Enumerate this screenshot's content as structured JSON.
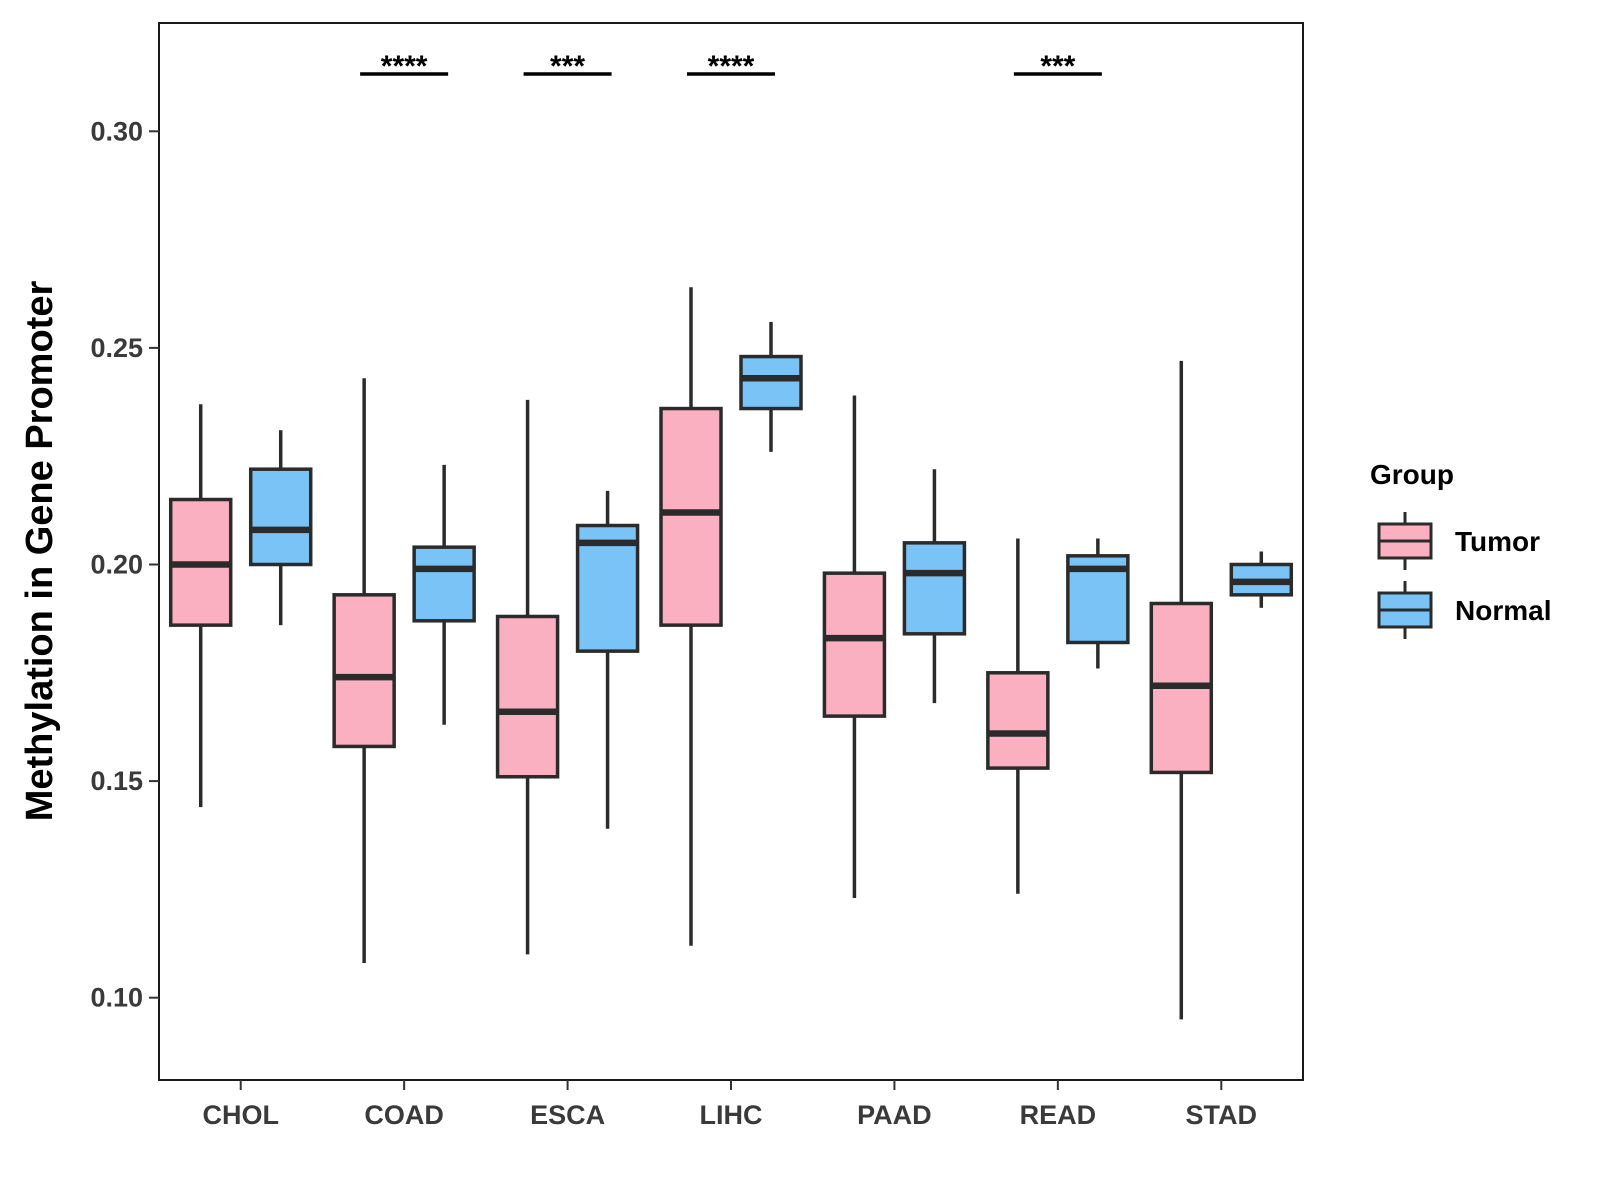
{
  "chart_data": {
    "type": "boxplot",
    "title": "",
    "xlabel": "",
    "ylabel": "Methylation in Gene Promoter",
    "ylim": [
      0.081,
      0.325
    ],
    "yticks": [
      0.1,
      0.15,
      0.2,
      0.25,
      0.3
    ],
    "ytick_labels": [
      "0.10",
      "0.15",
      "0.20",
      "0.25",
      "0.30"
    ],
    "categories": [
      "CHOL",
      "COAD",
      "ESCA",
      "LIHC",
      "PAAD",
      "READ",
      "STAD"
    ],
    "grid": false,
    "legend": {
      "title": "Group",
      "position": "right",
      "entries": [
        {
          "name": "Tumor",
          "color": "#FBB0C2"
        },
        {
          "name": "Normal",
          "color": "#7AC3F7"
        }
      ]
    },
    "series": [
      {
        "name": "Tumor",
        "color": "#FBB0C2",
        "boxes": [
          {
            "category": "CHOL",
            "whisker_low": 0.144,
            "q1": 0.186,
            "median": 0.2,
            "q3": 0.215,
            "whisker_high": 0.237
          },
          {
            "category": "COAD",
            "whisker_low": 0.108,
            "q1": 0.158,
            "median": 0.174,
            "q3": 0.193,
            "whisker_high": 0.243
          },
          {
            "category": "ESCA",
            "whisker_low": 0.11,
            "q1": 0.151,
            "median": 0.166,
            "q3": 0.188,
            "whisker_high": 0.238
          },
          {
            "category": "LIHC",
            "whisker_low": 0.112,
            "q1": 0.186,
            "median": 0.212,
            "q3": 0.236,
            "whisker_high": 0.264
          },
          {
            "category": "PAAD",
            "whisker_low": 0.123,
            "q1": 0.165,
            "median": 0.183,
            "q3": 0.198,
            "whisker_high": 0.239
          },
          {
            "category": "READ",
            "whisker_low": 0.124,
            "q1": 0.153,
            "median": 0.161,
            "q3": 0.175,
            "whisker_high": 0.206
          },
          {
            "category": "STAD",
            "whisker_low": 0.095,
            "q1": 0.152,
            "median": 0.172,
            "q3": 0.191,
            "whisker_high": 0.247
          }
        ]
      },
      {
        "name": "Normal",
        "color": "#7AC3F7",
        "boxes": [
          {
            "category": "CHOL",
            "whisker_low": 0.186,
            "q1": 0.2,
            "median": 0.208,
            "q3": 0.222,
            "whisker_high": 0.231
          },
          {
            "category": "COAD",
            "whisker_low": 0.163,
            "q1": 0.187,
            "median": 0.199,
            "q3": 0.204,
            "whisker_high": 0.223
          },
          {
            "category": "ESCA",
            "whisker_low": 0.139,
            "q1": 0.18,
            "median": 0.205,
            "q3": 0.209,
            "whisker_high": 0.217
          },
          {
            "category": "LIHC",
            "whisker_low": 0.226,
            "q1": 0.236,
            "median": 0.243,
            "q3": 0.248,
            "whisker_high": 0.256
          },
          {
            "category": "PAAD",
            "whisker_low": 0.168,
            "q1": 0.184,
            "median": 0.198,
            "q3": 0.205,
            "whisker_high": 0.222
          },
          {
            "category": "READ",
            "whisker_low": 0.176,
            "q1": 0.182,
            "median": 0.199,
            "q3": 0.202,
            "whisker_high": 0.206
          },
          {
            "category": "STAD",
            "whisker_low": 0.19,
            "q1": 0.193,
            "median": 0.196,
            "q3": 0.2,
            "whisker_high": 0.203
          }
        ]
      }
    ],
    "annotations": [
      {
        "category": "COAD",
        "label": "****"
      },
      {
        "category": "ESCA",
        "label": "***"
      },
      {
        "category": "LIHC",
        "label": "****"
      },
      {
        "category": "READ",
        "label": "***"
      }
    ]
  }
}
